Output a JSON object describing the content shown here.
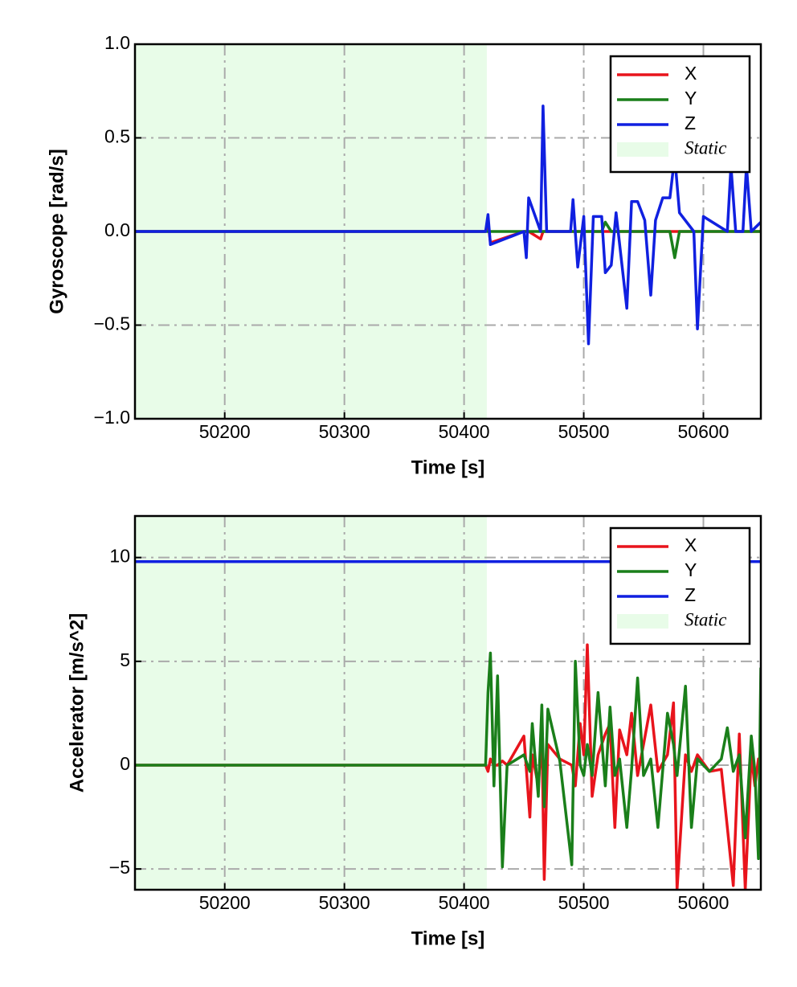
{
  "chart_data": [
    {
      "type": "line",
      "xlabel": "Time [s]",
      "ylabel": "Gyroscope [rad/s]",
      "xlim": [
        50125,
        50648
      ],
      "ylim": [
        -1,
        1
      ],
      "xticks": [
        50200,
        50300,
        50400,
        50500,
        50600
      ],
      "yticks": [
        {
          "value": -1,
          "label": "−1.0"
        },
        {
          "value": -0.5,
          "label": "−0.5"
        },
        {
          "value": 0,
          "label": "0.0"
        },
        {
          "value": 0.5,
          "label": "0.5"
        },
        {
          "value": 1,
          "label": "1.0"
        }
      ],
      "grid": true,
      "legend": "upper right",
      "span": {
        "name": "Static",
        "start": 50125,
        "end": 50419,
        "color": "#e8fce8"
      },
      "x": [
        50125,
        50418,
        50420,
        50422,
        50450,
        50452,
        50454,
        50464,
        50466,
        50469,
        50489,
        50491,
        50495,
        50500,
        50504,
        50508,
        50515,
        50518,
        50523,
        50527,
        50536,
        50540,
        50545,
        50551,
        50556,
        50560,
        50566,
        50572,
        50576,
        50580,
        50592,
        50595,
        50600,
        50620,
        50623,
        50627,
        50633,
        50636,
        50640,
        50648
      ],
      "series": [
        {
          "name": "X",
          "color": "#e8141c",
          "values": [
            0,
            0,
            0.05,
            -0.06,
            0,
            0,
            0,
            -0.04,
            0,
            0,
            0,
            0,
            0,
            0,
            0,
            0,
            0,
            0,
            0,
            0,
            0,
            0,
            0,
            0,
            0,
            0,
            0,
            0,
            0,
            0,
            0,
            0,
            0,
            0,
            0,
            0,
            0,
            0,
            0,
            0
          ]
        },
        {
          "name": "Y",
          "color": "#1a7f1a",
          "values": [
            0,
            0,
            0,
            0,
            0,
            0,
            0,
            0,
            0,
            0,
            0,
            0,
            0,
            0,
            0,
            0,
            0,
            0.05,
            0,
            0,
            0,
            0,
            0,
            0,
            0,
            0,
            0,
            0,
            -0.14,
            0,
            0,
            0,
            0,
            0,
            0,
            0,
            0,
            0,
            0,
            0
          ]
        },
        {
          "name": "Z",
          "color": "#1020e0",
          "values": [
            0,
            0,
            0.09,
            -0.07,
            0,
            -0.14,
            0.18,
            0,
            0.67,
            0,
            0,
            0.17,
            -0.19,
            0.08,
            -0.6,
            0.08,
            0.08,
            -0.22,
            -0.18,
            0.1,
            -0.41,
            0.16,
            0.16,
            0.06,
            -0.34,
            0.06,
            0.18,
            0.18,
            0.4,
            0.1,
            0,
            -0.52,
            0.08,
            0,
            0.35,
            0,
            0,
            0.35,
            0,
            0.05
          ]
        }
      ]
    },
    {
      "type": "line",
      "xlabel": "Time [s]",
      "ylabel": "Accelerator [m/s^2]",
      "xlim": [
        50125,
        50648
      ],
      "ylim": [
        -6,
        12
      ],
      "xticks": [
        50200,
        50300,
        50400,
        50500,
        50600
      ],
      "yticks": [
        {
          "value": -5,
          "label": "−5"
        },
        0,
        5,
        10
      ],
      "grid": true,
      "legend": "upper right",
      "span": {
        "name": "Static",
        "start": 50125,
        "end": 50419,
        "color": "#e8fce8"
      },
      "x": [
        50125,
        50418,
        50420,
        50422,
        50425,
        50428,
        50432,
        50436,
        50450,
        50455,
        50457,
        50462,
        50465,
        50467,
        50470,
        50480,
        50490,
        50493,
        50497,
        50500,
        50503,
        50507,
        50512,
        50518,
        50522,
        50526,
        50530,
        50536,
        50540,
        50545,
        50550,
        50556,
        50562,
        50570,
        50575,
        50578,
        50585,
        50590,
        50595,
        50605,
        50615,
        50620,
        50625,
        50630,
        50635,
        50640,
        50643,
        50646,
        50648
      ],
      "series": [
        {
          "name": "X",
          "color": "#e8141c",
          "values": [
            0,
            0,
            -0.3,
            0.3,
            0,
            0,
            0.2,
            0,
            1.4,
            -2.5,
            0.5,
            -1,
            1.5,
            -5.5,
            1,
            0.3,
            0,
            -1,
            2,
            0.5,
            5.8,
            -1.5,
            0.5,
            1.5,
            2,
            -3,
            1.7,
            0.5,
            2.5,
            -0.5,
            1,
            2.9,
            -0.3,
            0.5,
            3,
            -6,
            0.5,
            -0.3,
            0.5,
            -0.3,
            -0.2,
            -3,
            -5.8,
            1.5,
            -6,
            0.5,
            -1,
            0.3,
            0
          ]
        },
        {
          "name": "Y",
          "color": "#1a7f1a",
          "values": [
            0,
            0,
            3.5,
            5.4,
            -1,
            4.3,
            -4.9,
            0,
            0.5,
            -0.3,
            2,
            -1.5,
            2.9,
            -2,
            2.7,
            0.2,
            -4.8,
            5,
            0,
            -0.5,
            1,
            -0.5,
            3.5,
            -1,
            2.8,
            -0.5,
            0.3,
            -3,
            -0.2,
            4.2,
            -0.5,
            0.3,
            -3,
            2.5,
            1,
            -0.5,
            3.8,
            -3,
            0.3,
            -0.3,
            0.3,
            1.8,
            -0.3,
            0.5,
            -3.5,
            1.4,
            -0.3,
            -4.5,
            4.7
          ]
        },
        {
          "name": "Z",
          "color": "#1020e0",
          "values": [
            9.8,
            9.8,
            9.8,
            9.8,
            9.8,
            9.8,
            9.8,
            9.8,
            9.8,
            9.8,
            9.8,
            9.8,
            9.8,
            9.8,
            9.8,
            9.8,
            9.8,
            9.8,
            9.8,
            9.8,
            9.8,
            9.8,
            9.8,
            9.8,
            9.8,
            9.8,
            9.8,
            9.8,
            9.8,
            9.8,
            9.8,
            9.8,
            9.8,
            9.8,
            9.8,
            9.8,
            9.8,
            9.8,
            9.8,
            9.8,
            9.8,
            9.8,
            9.8,
            9.8,
            9.8,
            9.8,
            9.8,
            9.8,
            9.8
          ]
        }
      ]
    }
  ]
}
